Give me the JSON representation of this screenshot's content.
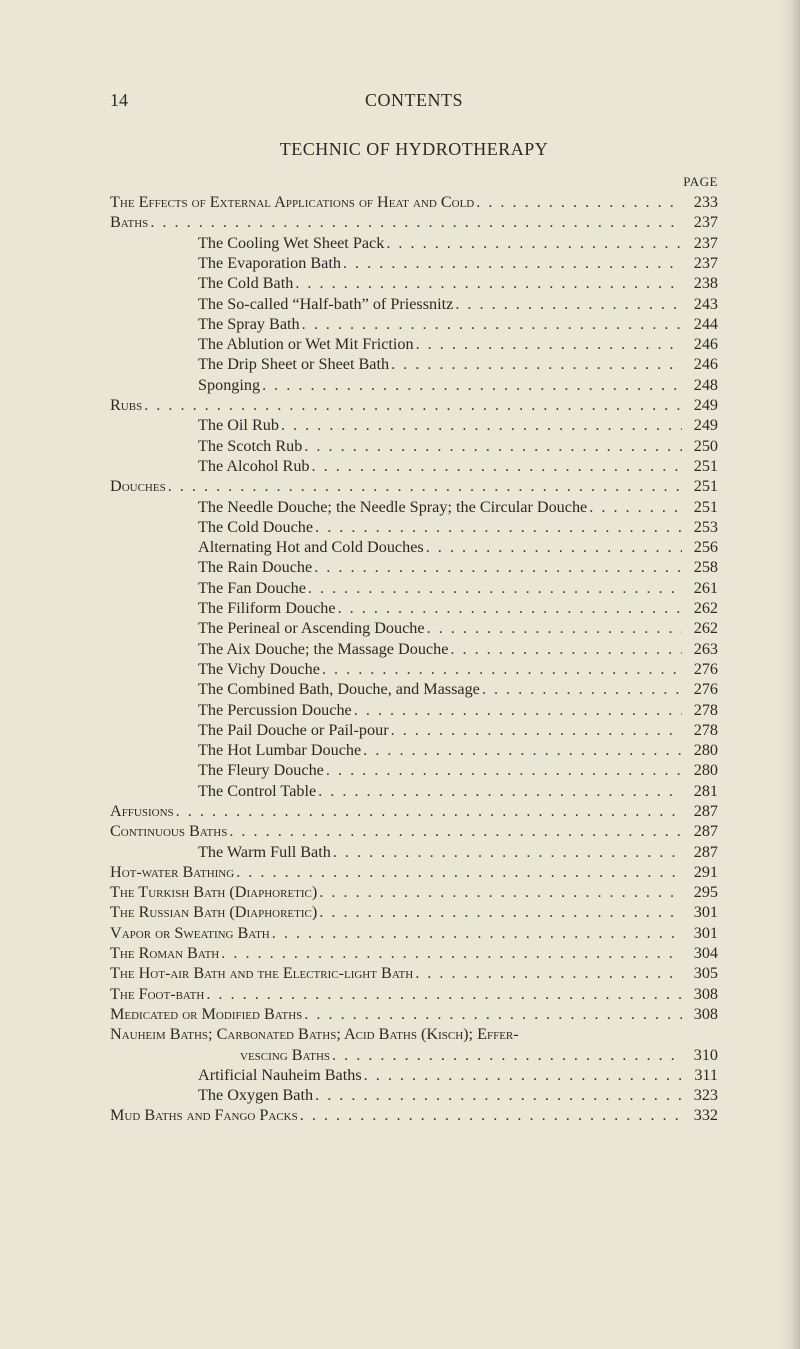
{
  "header": {
    "page_number": "14",
    "running_title": "CONTENTS"
  },
  "section_title": "TECHNIC OF HYDROTHERAPY",
  "page_label": "PAGE",
  "entries": [
    {
      "label": "The Effects of External Applications of Heat and Cold",
      "page": "233",
      "level": 0,
      "sc": true
    },
    {
      "label": "Baths",
      "page": "237",
      "level": 0,
      "sc": true
    },
    {
      "label": "The Cooling Wet Sheet Pack",
      "page": "237",
      "level": 1
    },
    {
      "label": "The Evaporation Bath",
      "page": "237",
      "level": 1
    },
    {
      "label": "The Cold Bath",
      "page": "238",
      "level": 1
    },
    {
      "label": "The So-called “Half-bath” of Priessnitz",
      "page": "243",
      "level": 1
    },
    {
      "label": "The Spray Bath",
      "page": "244",
      "level": 1
    },
    {
      "label": "The Ablution or Wet Mit Friction",
      "page": "246",
      "level": 1
    },
    {
      "label": "The Drip Sheet or Sheet Bath",
      "page": "246",
      "level": 1
    },
    {
      "label": "Sponging",
      "page": "248",
      "level": 1
    },
    {
      "label": "Rubs",
      "page": "249",
      "level": 0,
      "sc": true
    },
    {
      "label": "The Oil Rub",
      "page": "249",
      "level": 1
    },
    {
      "label": "The Scotch Rub",
      "page": "250",
      "level": 1
    },
    {
      "label": "The Alcohol Rub",
      "page": "251",
      "level": 1
    },
    {
      "label": "Douches",
      "page": "251",
      "level": 0,
      "sc": true
    },
    {
      "label": "The Needle Douche; the Needle Spray; the Circular Douche",
      "page": "251",
      "level": 1
    },
    {
      "label": "The Cold Douche",
      "page": "253",
      "level": 1
    },
    {
      "label": "Alternating Hot and Cold Douches",
      "page": "256",
      "level": 1
    },
    {
      "label": "The Rain Douche",
      "page": "258",
      "level": 1
    },
    {
      "label": "The Fan Douche",
      "page": "261",
      "level": 1
    },
    {
      "label": "The Filiform Douche",
      "page": "262",
      "level": 1
    },
    {
      "label": "The Perineal or Ascending Douche",
      "page": "262",
      "level": 1
    },
    {
      "label": "The Aix Douche; the Massage Douche",
      "page": "263",
      "level": 1
    },
    {
      "label": "The Vichy Douche",
      "page": "276",
      "level": 1
    },
    {
      "label": "The Combined Bath, Douche, and Massage",
      "page": "276",
      "level": 1
    },
    {
      "label": "The Percussion Douche",
      "page": "278",
      "level": 1
    },
    {
      "label": "The Pail Douche or Pail-pour",
      "page": "278",
      "level": 1
    },
    {
      "label": "The Hot Lumbar Douche",
      "page": "280",
      "level": 1
    },
    {
      "label": "The Fleury Douche",
      "page": "280",
      "level": 1
    },
    {
      "label": "The Control Table",
      "page": "281",
      "level": 1
    },
    {
      "label": "Affusions",
      "page": "287",
      "level": 0,
      "sc": true
    },
    {
      "label": "Continuous Baths",
      "page": "287",
      "level": 0,
      "sc": true
    },
    {
      "label": "The Warm Full Bath",
      "page": "287",
      "level": 1
    },
    {
      "label": "Hot-water Bathing",
      "page": "291",
      "level": 0,
      "sc": true
    },
    {
      "label": "The Turkish Bath (Diaphoretic)",
      "page": "295",
      "level": 0,
      "sc": true
    },
    {
      "label": "The Russian Bath (Diaphoretic)",
      "page": "301",
      "level": 0,
      "sc": true
    },
    {
      "label": "Vapor or Sweating Bath",
      "page": "301",
      "level": 0,
      "sc": true
    },
    {
      "label": "The Roman Bath",
      "page": "304",
      "level": 0,
      "sc": true
    },
    {
      "label": "The Hot-air Bath and the Electric-light Bath",
      "page": "305",
      "level": 0,
      "sc": true
    },
    {
      "label": "The Foot-bath",
      "page": "308",
      "level": 0,
      "sc": true
    },
    {
      "label": "Medicated or Modified Baths",
      "page": "308",
      "level": 0,
      "sc": true
    },
    {
      "label": "Nauheim Baths; Carbonated Baths; Acid Baths (Kisch); Effer-",
      "page": "",
      "level": 0,
      "sc": true,
      "no_leader": true
    },
    {
      "label": "vescing Baths",
      "page": "310",
      "level": 2,
      "sc": true
    },
    {
      "label": "Artificial Nauheim Baths",
      "page": "311",
      "level": 1
    },
    {
      "label": "The Oxygen Bath",
      "page": "323",
      "level": 1
    },
    {
      "label": "Mud Baths and Fango Packs",
      "page": "332",
      "level": 0,
      "sc": true
    }
  ]
}
